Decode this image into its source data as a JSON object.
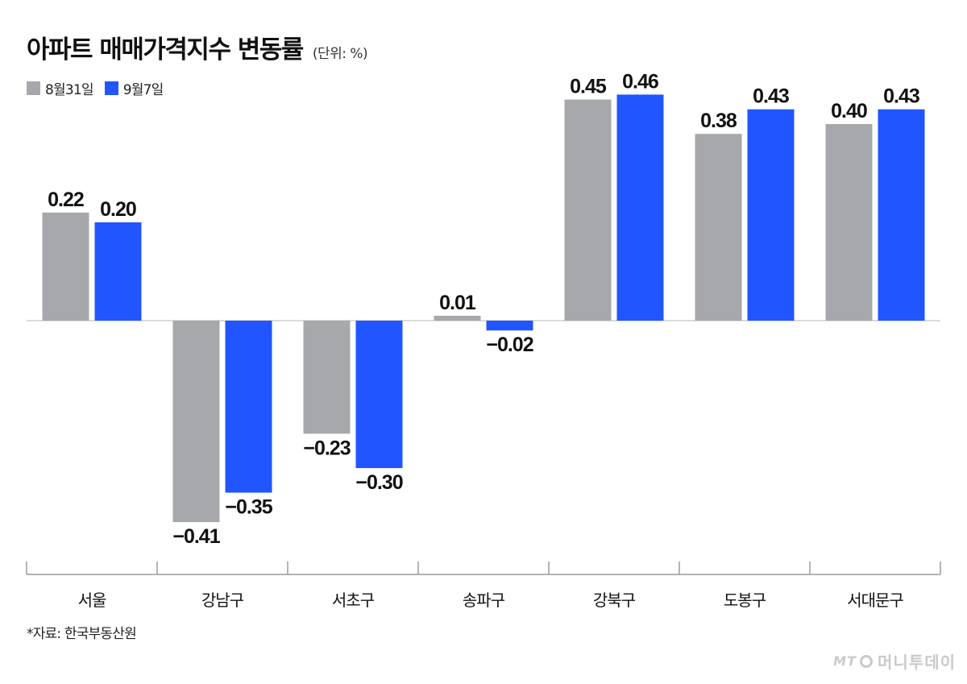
{
  "header": {
    "title": "아파트 매매가격지수 변동률",
    "unit": "(단위: %)"
  },
  "legend": [
    {
      "label": "8월31일",
      "color": "#a7a8ab"
    },
    {
      "label": "9월7일",
      "color": "#2155ff"
    }
  ],
  "chart_data": {
    "type": "bar",
    "title": "아파트 매매가격지수 변동률",
    "unit": "%",
    "categories": [
      "서울",
      "강남구",
      "서초구",
      "송파구",
      "강북구",
      "도봉구",
      "서대문구"
    ],
    "series": [
      {
        "name": "8월31일",
        "color": "#a7a8ab",
        "values": [
          0.22,
          -0.41,
          -0.23,
          0.01,
          0.45,
          0.38,
          0.4
        ],
        "labels": [
          "0.22",
          "−0.41",
          "−0.23",
          "0.01",
          "0.45",
          "0.38",
          "0.40"
        ]
      },
      {
        "name": "9월7일",
        "color": "#2155ff",
        "values": [
          0.2,
          -0.35,
          -0.3,
          -0.02,
          0.46,
          0.43,
          0.43
        ],
        "labels": [
          "0.20",
          "−0.35",
          "−0.30",
          "−0.02",
          "0.46",
          "0.43",
          "0.43"
        ]
      }
    ],
    "ylim": [
      -0.5,
      0.5
    ],
    "grid": false,
    "legend_position": "top-left"
  },
  "footer": {
    "source": "*자료: 한국부동산원",
    "watermark_logo": "MT",
    "watermark_text": "머니투데이"
  }
}
